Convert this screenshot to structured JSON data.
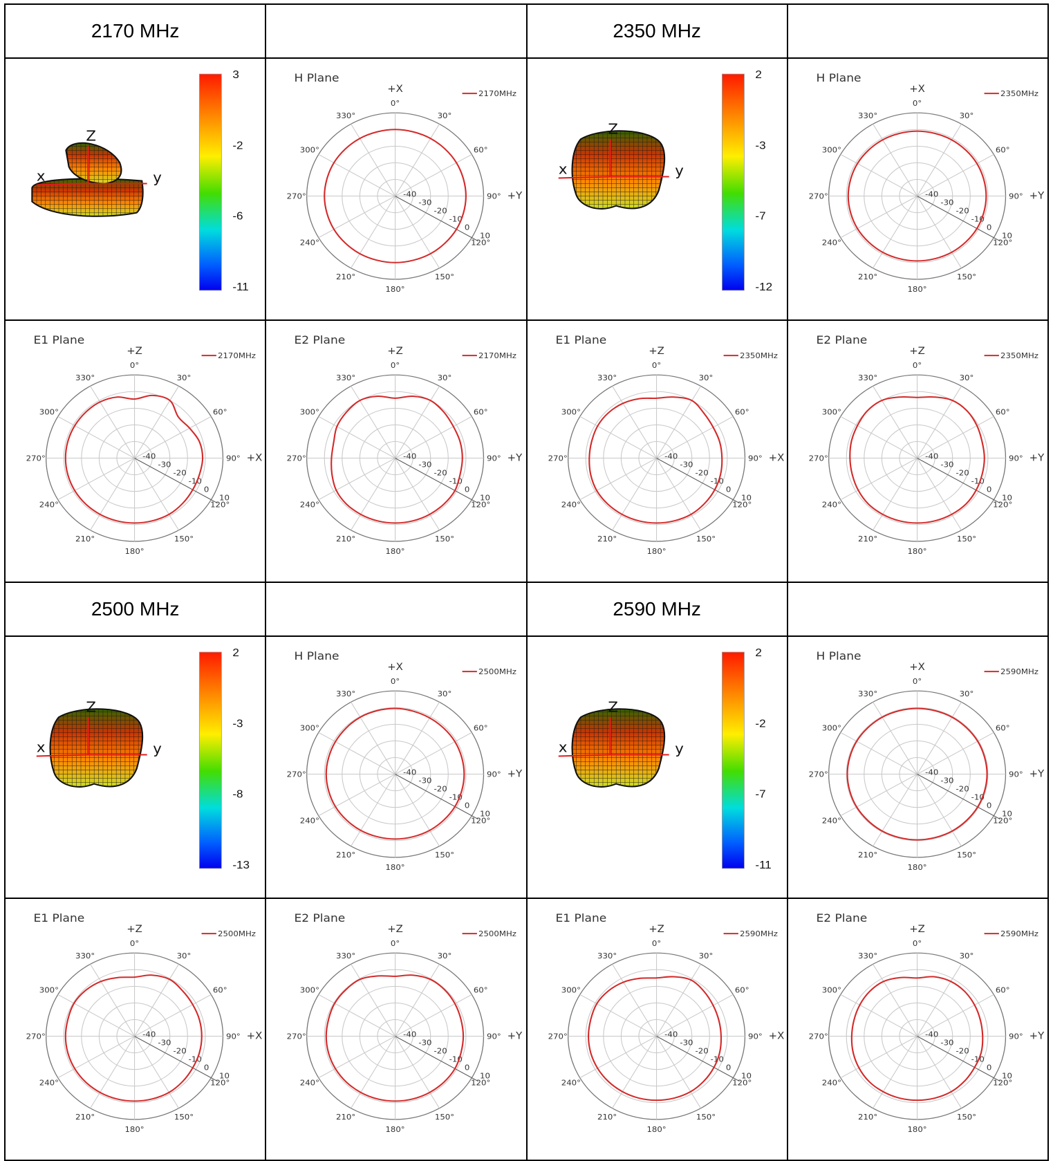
{
  "colors": {
    "trace": "#d42a2a",
    "grid": "#c8c8c8",
    "outer": "#777777",
    "axis_3d": "#e11b1b"
  },
  "frequencies": [
    {
      "label": "2170 MHz",
      "legend": "2170MHz",
      "colorbar": [
        "3",
        "-2",
        "-6",
        "-11"
      ],
      "shape3d": "double-lobe"
    },
    {
      "label": "2350 MHz",
      "legend": "2350MHz",
      "colorbar": [
        "2",
        "-3",
        "-7",
        "-12"
      ],
      "shape3d": "blob"
    },
    {
      "label": "2500 MHz",
      "legend": "2500MHz",
      "colorbar": [
        "2",
        "-3",
        "-8",
        "-13"
      ],
      "shape3d": "blob"
    },
    {
      "label": "2590 MHz",
      "legend": "2590MHz",
      "colorbar": [
        "2",
        "-2",
        "-7",
        "-11"
      ],
      "shape3d": "blob"
    }
  ],
  "axis3d_letters": {
    "z": "Z",
    "x": "x",
    "y": "y"
  },
  "chart_data": [
    {
      "type": "line",
      "coordinate_system": "polar",
      "title": "H Plane",
      "freq": 0,
      "top_label": "+X",
      "right_label": "+Y",
      "angle_ticks": [
        "0°",
        "30°",
        "60°",
        "90°",
        "120°",
        "150°",
        "180°",
        "210°",
        "240°",
        "270°",
        "300°",
        "330°"
      ],
      "radial_ticks": [
        "-40",
        "-30",
        "-20",
        "-10",
        "0",
        "10"
      ],
      "rlim": [
        -40,
        10
      ],
      "legend": "2170MHz",
      "series": [
        {
          "name": "2170MHz",
          "angles_deg": [
            0,
            30,
            60,
            90,
            120,
            150,
            180,
            210,
            240,
            270,
            300,
            330
          ],
          "values": [
            0,
            0,
            0,
            0,
            0,
            0,
            0,
            0,
            0,
            0,
            0,
            0
          ]
        }
      ]
    },
    {
      "type": "line",
      "coordinate_system": "polar",
      "title": "E1 Plane",
      "freq": 0,
      "top_label": "+Z",
      "right_label": "+X",
      "angle_ticks": [
        "0°",
        "30°",
        "60°",
        "90°",
        "120°",
        "150°",
        "180°",
        "210°",
        "240°",
        "270°",
        "300°",
        "330°"
      ],
      "radial_ticks": [
        "-40",
        "-30",
        "-20",
        "-10",
        "0",
        "10"
      ],
      "rlim": [
        -40,
        10
      ],
      "legend": "2170MHz",
      "series": [
        {
          "name": "2170MHz",
          "angles_deg": [
            0,
            15,
            30,
            45,
            60,
            75,
            90,
            105,
            120,
            135,
            150,
            165,
            180,
            195,
            210,
            225,
            240,
            255,
            270,
            285,
            300,
            315,
            330,
            345
          ],
          "values": [
            -4.5,
            -1,
            0,
            -5,
            -4,
            -2,
            -1.5,
            -2,
            -2,
            -1.5,
            -1,
            -1,
            -1,
            -1,
            -1,
            -1,
            -1,
            -1,
            -1,
            -1,
            -1,
            -1,
            -1,
            -2
          ]
        }
      ]
    },
    {
      "type": "line",
      "coordinate_system": "polar",
      "title": "E2 Plane",
      "freq": 0,
      "top_label": "+Z",
      "right_label": "+Y",
      "angle_ticks": [
        "0°",
        "30°",
        "60°",
        "90°",
        "120°",
        "150°",
        "180°",
        "210°",
        "240°",
        "270°",
        "300°",
        "330°"
      ],
      "radial_ticks": [
        "-40",
        "-30",
        "-20",
        "-10",
        "0",
        "10"
      ],
      "rlim": [
        -40,
        10
      ],
      "legend": "2170MHz",
      "series": [
        {
          "name": "2170MHz",
          "angles_deg": [
            0,
            15,
            30,
            45,
            60,
            75,
            90,
            105,
            120,
            135,
            150,
            165,
            180,
            195,
            210,
            225,
            240,
            255,
            270,
            285,
            300,
            315,
            330,
            345
          ],
          "values": [
            -4,
            -1.5,
            0,
            -1,
            -2,
            -2,
            -2,
            -2,
            -1,
            -1,
            -1,
            -1,
            -1,
            -1,
            -1,
            -1,
            -1.5,
            -3,
            -4,
            -4,
            -2,
            -1,
            0,
            -1.5
          ]
        }
      ]
    },
    {
      "type": "line",
      "coordinate_system": "polar",
      "title": "H Plane",
      "freq": 1,
      "top_label": "+X",
      "right_label": "+Y",
      "angle_ticks": [
        "0°",
        "30°",
        "60°",
        "90°",
        "120°",
        "150°",
        "180°",
        "210°",
        "240°",
        "270°",
        "300°",
        "330°"
      ],
      "radial_ticks": [
        "-40",
        "-30",
        "-20",
        "-10",
        "0",
        "10"
      ],
      "rlim": [
        -40,
        10
      ],
      "legend": "2350MHz",
      "series": [
        {
          "name": "2350MHz",
          "angles_deg": [
            0,
            30,
            60,
            90,
            120,
            150,
            180,
            210,
            240,
            270,
            300,
            330
          ],
          "values": [
            -1,
            -1,
            -1,
            -1,
            -1,
            -1,
            -1,
            -1,
            -1,
            -1,
            -1,
            -1
          ]
        }
      ]
    },
    {
      "type": "line",
      "coordinate_system": "polar",
      "title": "E1 Plane",
      "freq": 1,
      "top_label": "+Z",
      "right_label": "+X",
      "angle_ticks": [
        "0°",
        "30°",
        "60°",
        "90°",
        "120°",
        "150°",
        "180°",
        "210°",
        "240°",
        "270°",
        "300°",
        "330°"
      ],
      "radial_ticks": [
        "-40",
        "-30",
        "-20",
        "-10",
        "0",
        "10"
      ],
      "rlim": [
        -40,
        10
      ],
      "legend": "2350MHz",
      "series": [
        {
          "name": "2350MHz",
          "angles_deg": [
            0,
            15,
            30,
            45,
            60,
            75,
            90,
            105,
            120,
            135,
            150,
            165,
            180,
            195,
            210,
            225,
            240,
            255,
            270,
            285,
            300,
            315,
            330,
            345
          ],
          "values": [
            -4,
            -2,
            0,
            -2,
            -3,
            -3,
            -3,
            -2.5,
            -2,
            -1.5,
            -1,
            -1,
            -1,
            -1,
            -1,
            -1,
            -1,
            -1.5,
            -2,
            -2,
            -1.5,
            -1.5,
            -2,
            -3
          ]
        }
      ]
    },
    {
      "type": "line",
      "coordinate_system": "polar",
      "title": "E2 Plane",
      "freq": 1,
      "top_label": "+Z",
      "right_label": "+Y",
      "angle_ticks": [
        "0°",
        "30°",
        "60°",
        "90°",
        "120°",
        "150°",
        "180°",
        "210°",
        "240°",
        "270°",
        "300°",
        "330°"
      ],
      "radial_ticks": [
        "-40",
        "-30",
        "-20",
        "-10",
        "0",
        "10"
      ],
      "rlim": [
        -40,
        10
      ],
      "legend": "2350MHz",
      "series": [
        {
          "name": "2350MHz",
          "angles_deg": [
            0,
            15,
            30,
            45,
            60,
            75,
            90,
            105,
            120,
            135,
            150,
            165,
            180,
            195,
            210,
            225,
            240,
            255,
            270,
            285,
            300,
            315,
            330,
            345
          ],
          "values": [
            -3.5,
            -2,
            0,
            0,
            -1,
            -2,
            -2,
            -2,
            -1.5,
            -1,
            -1,
            -1,
            -1,
            -1,
            -1,
            -1,
            -1.5,
            -2,
            -2,
            -1.5,
            -1,
            0,
            0,
            -2
          ]
        }
      ]
    },
    {
      "type": "line",
      "coordinate_system": "polar",
      "title": "H Plane",
      "freq": 2,
      "top_label": "+X",
      "right_label": "+Y",
      "angle_ticks": [
        "0°",
        "30°",
        "60°",
        "90°",
        "120°",
        "150°",
        "180°",
        "210°",
        "240°",
        "270°",
        "300°",
        "330°"
      ],
      "radial_ticks": [
        "-40",
        "-30",
        "-20",
        "-10",
        "0",
        "10"
      ],
      "rlim": [
        -40,
        10
      ],
      "legend": "2500MHz",
      "series": [
        {
          "name": "2500MHz",
          "angles_deg": [
            0,
            30,
            60,
            90,
            120,
            150,
            180,
            210,
            240,
            270,
            300,
            330
          ],
          "values": [
            -0.5,
            -1,
            -1,
            -1,
            -1,
            -1,
            -1,
            -1,
            -1,
            -1,
            -1,
            -0.5
          ]
        }
      ]
    },
    {
      "type": "line",
      "coordinate_system": "polar",
      "title": "E1 Plane",
      "freq": 2,
      "top_label": "+Z",
      "right_label": "+X",
      "angle_ticks": [
        "0°",
        "30°",
        "60°",
        "90°",
        "120°",
        "150°",
        "180°",
        "210°",
        "240°",
        "270°",
        "300°",
        "330°"
      ],
      "radial_ticks": [
        "-40",
        "-30",
        "-20",
        "-10",
        "0",
        "10"
      ],
      "rlim": [
        -40,
        10
      ],
      "legend": "2500MHz",
      "series": [
        {
          "name": "2500MHz",
          "angles_deg": [
            0,
            15,
            30,
            45,
            60,
            75,
            90,
            105,
            120,
            135,
            150,
            165,
            180,
            195,
            210,
            225,
            240,
            255,
            270,
            285,
            300,
            315,
            330,
            345
          ],
          "values": [
            -4.5,
            -2,
            -0.5,
            -1.5,
            -2,
            -2,
            -2,
            -2,
            -2,
            -1.5,
            -1,
            -1,
            -1,
            -1,
            -1,
            -1,
            -1,
            -1,
            -1,
            -1,
            -0.5,
            -1,
            -2,
            -3.5
          ]
        }
      ]
    },
    {
      "type": "line",
      "coordinate_system": "polar",
      "title": "E2 Plane",
      "freq": 2,
      "top_label": "+Z",
      "right_label": "+Y",
      "angle_ticks": [
        "0°",
        "30°",
        "60°",
        "90°",
        "120°",
        "150°",
        "180°",
        "210°",
        "240°",
        "270°",
        "300°",
        "330°"
      ],
      "radial_ticks": [
        "-40",
        "-30",
        "-20",
        "-10",
        "0",
        "10"
      ],
      "rlim": [
        -40,
        10
      ],
      "legend": "2500MHz",
      "series": [
        {
          "name": "2500MHz",
          "angles_deg": [
            0,
            15,
            30,
            45,
            60,
            75,
            90,
            105,
            120,
            135,
            150,
            165,
            180,
            195,
            210,
            225,
            240,
            255,
            270,
            285,
            300,
            315,
            330,
            345
          ],
          "values": [
            -4,
            -2,
            -0.5,
            -0.5,
            -1,
            -1.5,
            -1.5,
            -1.5,
            -1,
            -1,
            -1,
            -1,
            -1,
            -1,
            -1,
            -1,
            -1,
            -1,
            -1,
            -1,
            -0.5,
            -0.5,
            -0.5,
            -2.5
          ]
        }
      ]
    },
    {
      "type": "line",
      "coordinate_system": "polar",
      "title": "H Plane",
      "freq": 3,
      "top_label": "+X",
      "right_label": "+Y",
      "angle_ticks": [
        "0°",
        "30°",
        "60°",
        "90°",
        "120°",
        "150°",
        "180°",
        "210°",
        "240°",
        "270°",
        "300°",
        "330°"
      ],
      "radial_ticks": [
        "-40",
        "-30",
        "-20",
        "-10",
        "0",
        "10"
      ],
      "rlim": [
        -40,
        10
      ],
      "legend": "2590MHz",
      "series": [
        {
          "name": "2590MHz",
          "angles_deg": [
            0,
            30,
            60,
            90,
            120,
            150,
            180,
            210,
            240,
            270,
            300,
            330
          ],
          "values": [
            -0.5,
            -0.5,
            -0.5,
            -0.5,
            -0.5,
            -0.5,
            -0.5,
            -0.5,
            -0.5,
            -0.5,
            -0.5,
            -0.5
          ]
        }
      ]
    },
    {
      "type": "line",
      "coordinate_system": "polar",
      "title": "E1 Plane",
      "freq": 3,
      "top_label": "+Z",
      "right_label": "+X",
      "angle_ticks": [
        "0°",
        "30°",
        "60°",
        "90°",
        "120°",
        "150°",
        "180°",
        "210°",
        "240°",
        "270°",
        "300°",
        "330°"
      ],
      "radial_ticks": [
        "-40",
        "-30",
        "-20",
        "-10",
        "0",
        "10"
      ],
      "rlim": [
        -40,
        10
      ],
      "legend": "2590MHz",
      "series": [
        {
          "name": "2590MHz",
          "angles_deg": [
            0,
            15,
            30,
            45,
            60,
            75,
            90,
            105,
            120,
            135,
            150,
            165,
            180,
            195,
            210,
            225,
            240,
            255,
            270,
            285,
            300,
            315,
            330,
            345
          ],
          "values": [
            -5,
            -3,
            -1,
            -2,
            -3,
            -3.5,
            -3.5,
            -3,
            -2.5,
            -2,
            -1.5,
            -1.5,
            -1.5,
            -1.5,
            -1.5,
            -1.5,
            -1.5,
            -1.5,
            -1.5,
            -1.5,
            -1,
            -1.5,
            -2.5,
            -4
          ]
        }
      ]
    },
    {
      "type": "line",
      "coordinate_system": "polar",
      "title": "E2 Plane",
      "freq": 3,
      "top_label": "+Z",
      "right_label": "+Y",
      "angle_ticks": [
        "0°",
        "30°",
        "60°",
        "90°",
        "120°",
        "150°",
        "180°",
        "210°",
        "240°",
        "270°",
        "300°",
        "330°"
      ],
      "radial_ticks": [
        "-40",
        "-30",
        "-20",
        "-10",
        "0",
        "10"
      ],
      "rlim": [
        -40,
        10
      ],
      "legend": "2590MHz",
      "series": [
        {
          "name": "2590MHz",
          "angles_deg": [
            0,
            15,
            30,
            45,
            60,
            75,
            90,
            105,
            120,
            135,
            150,
            165,
            180,
            195,
            210,
            225,
            240,
            255,
            270,
            285,
            300,
            315,
            330,
            345
          ],
          "values": [
            -5,
            -3,
            -2,
            -2,
            -2.5,
            -3,
            -3,
            -2.5,
            -2.5,
            -2,
            -1.5,
            -1.5,
            -1.5,
            -1.5,
            -1.5,
            -1.5,
            -2,
            -2.5,
            -3,
            -3,
            -2.5,
            -2,
            -2,
            -3.5
          ]
        }
      ]
    }
  ]
}
